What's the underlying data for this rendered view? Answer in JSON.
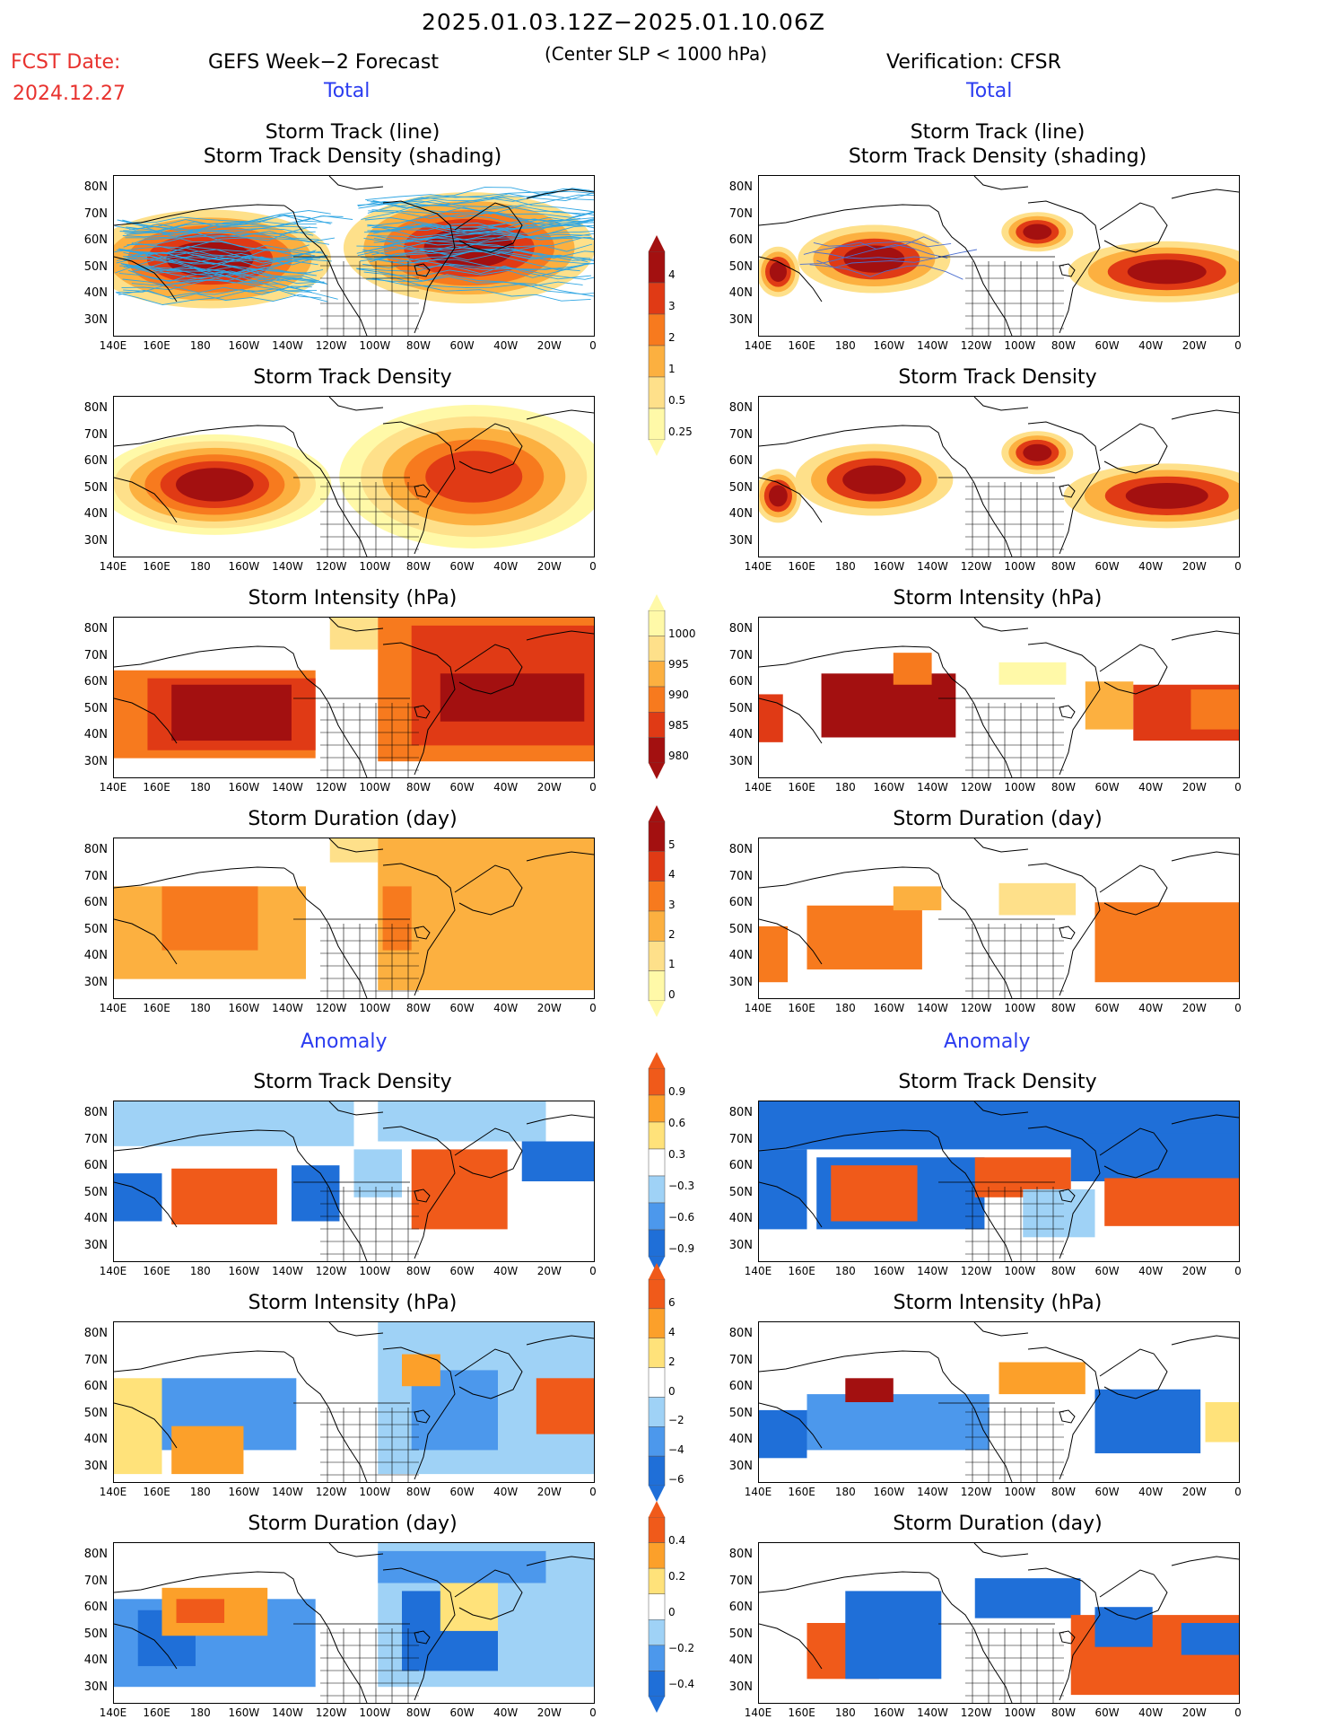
{
  "header": {
    "date_range": "2025.01.03.12Z−2025.01.10.06Z",
    "fcst_label": "FCST Date:",
    "fcst_date": "2024.12.27",
    "left_title": "GEFS Week−2 Forecast",
    "center_note": "(Center SLP < 1000 hPa)",
    "right_title": "Verification: CFSR"
  },
  "sections": {
    "total": "Total",
    "anomaly": "Anomaly"
  },
  "panel_titles": {
    "track_line": "Storm Track (line)",
    "track_shading": "Storm Track Density (shading)",
    "density": "Storm Track Density",
    "intensity": "Storm Intensity (hPa)",
    "duration": "Storm Duration (day)"
  },
  "axes": {
    "lat_ticks": [
      "80N",
      "70N",
      "60N",
      "50N",
      "40N",
      "30N"
    ],
    "lon_ticks": [
      "140E",
      "160E",
      "180",
      "160W",
      "140W",
      "120W",
      "100W",
      "80W",
      "60W",
      "40W",
      "20W",
      "0"
    ]
  },
  "colorbars": {
    "density": [
      "4",
      "3",
      "2",
      "1",
      "0.5",
      "0.25"
    ],
    "intensity": [
      "1000",
      "995",
      "990",
      "985",
      "980"
    ],
    "duration": [
      "5",
      "4",
      "3",
      "2",
      "1",
      "0"
    ],
    "density_anom": [
      "0.9",
      "0.6",
      "0.3",
      "−0.3",
      "−0.6",
      "−0.9"
    ],
    "intensity_anom": [
      "6",
      "4",
      "2",
      "0",
      "−2",
      "−4",
      "−6"
    ],
    "duration_anom": [
      "0.4",
      "0.2",
      "0",
      "−0.2",
      "−0.4"
    ]
  },
  "colors": {
    "total_scale": [
      "#fff9a8",
      "#fee08a",
      "#fcb040",
      "#f77a1e",
      "#e03a15",
      "#a31010"
    ],
    "anom_scale": [
      "#1f6fd8",
      "#4c98ec",
      "#9fd2f6",
      "#ffffff",
      "#ffe27a",
      "#fca02a",
      "#f05a1a"
    ],
    "track_lines": "#2fa6e3",
    "title_red": "#e8322e",
    "section_blue": "#2b3cf0"
  },
  "chart_data": {
    "type": "heatmap",
    "domain": {
      "lon": [
        "140E",
        "0"
      ],
      "lat": [
        "25N",
        "85N"
      ]
    },
    "panels": [
      {
        "row": "track",
        "source": "GEFS",
        "max_density_region": "North Pacific 170E–160W and North Atlantic"
      },
      {
        "row": "track",
        "source": "CFSR",
        "max_density_region": "North Pacific and North Atlantic 60W–10W"
      }
    ]
  }
}
